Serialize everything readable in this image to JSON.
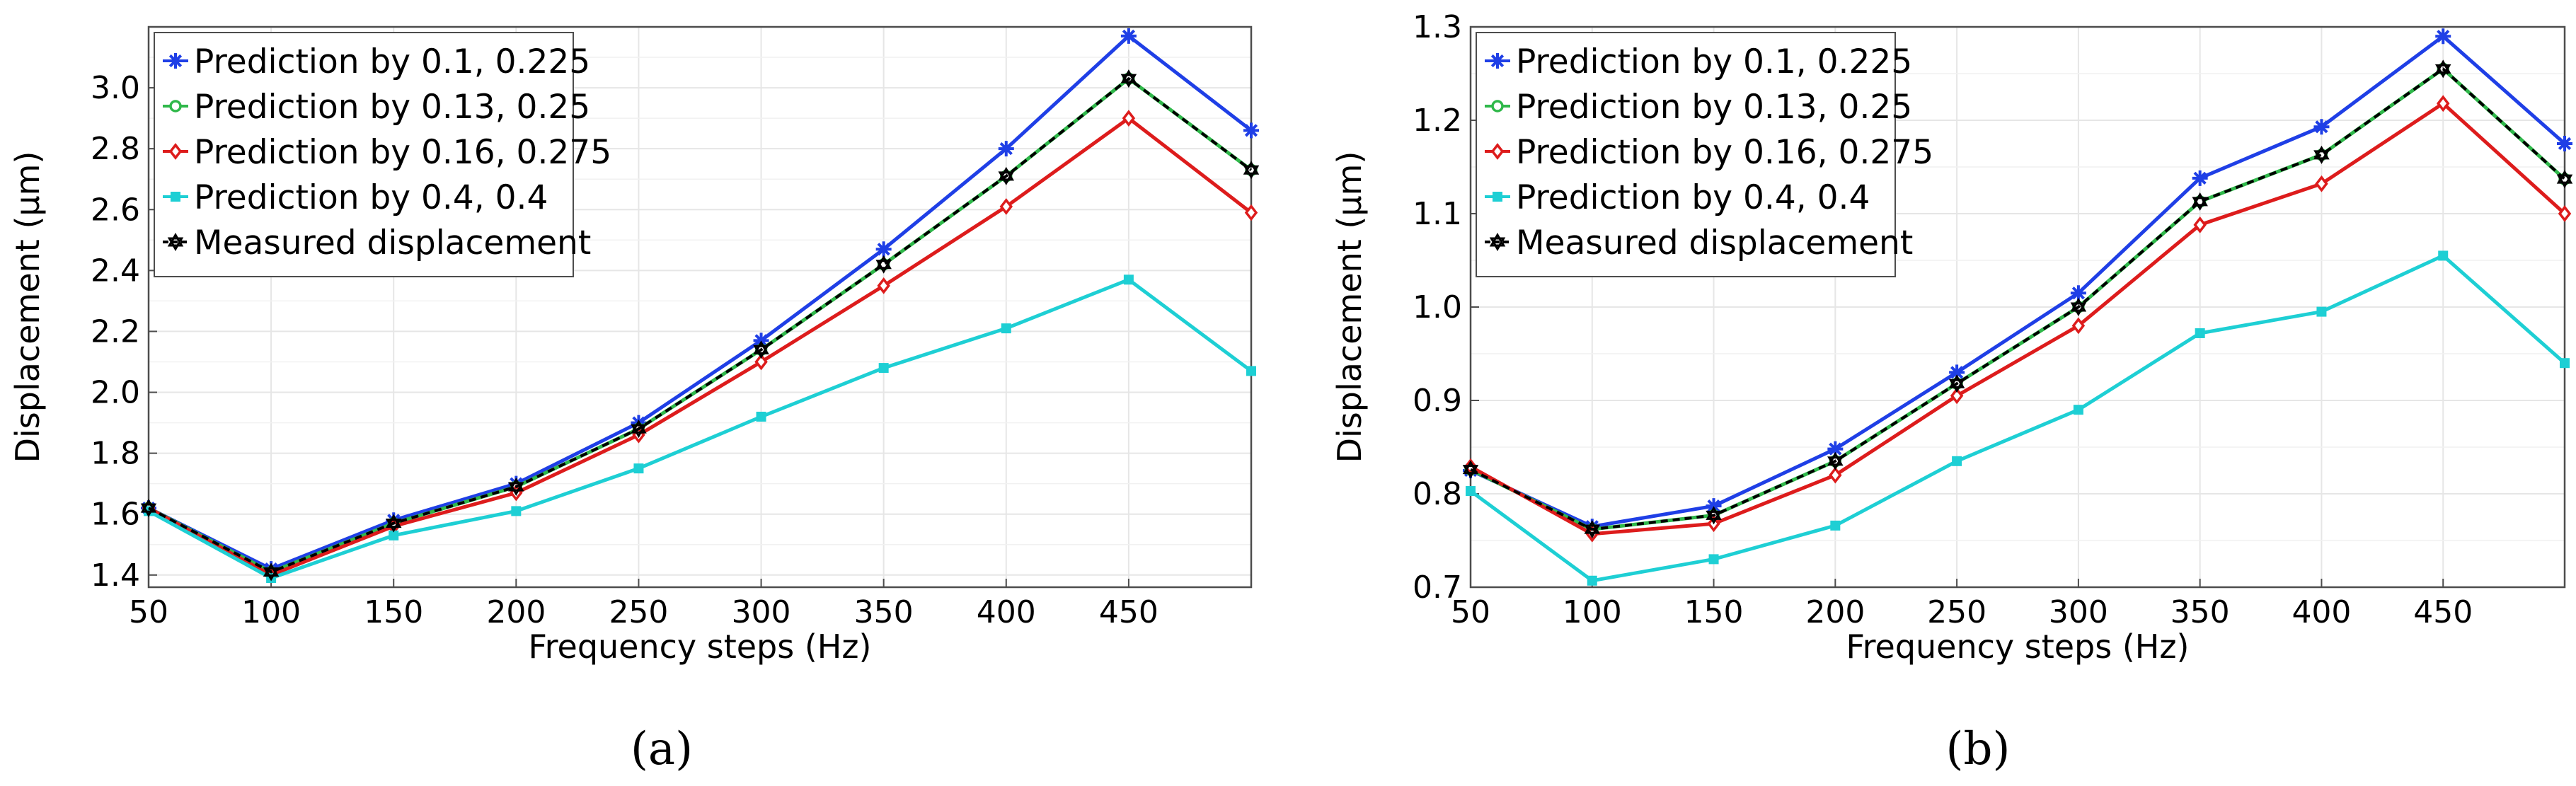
{
  "chart_data": [
    {
      "type": "line",
      "panel_label": "(a)",
      "xlabel": "Frequency steps (Hz)",
      "ylabel": "Displacement (μm)",
      "categories": [
        50,
        100,
        150,
        200,
        250,
        300,
        350,
        400,
        450,
        500
      ],
      "x_tick_labels": [
        "50",
        "100",
        "150",
        "200",
        "250",
        "300",
        "350",
        "400",
        "450"
      ],
      "xlim": [
        50,
        500
      ],
      "ylim": [
        1.36,
        3.2
      ],
      "y_ticks": [
        1.4,
        1.6,
        1.8,
        2.0,
        2.2,
        2.4,
        2.6,
        2.8,
        3.0
      ],
      "y_tick_labels": [
        "1.4",
        "1.6",
        "1.8",
        "2.0",
        "2.2",
        "2.4",
        "2.6",
        "2.8",
        "3.0"
      ],
      "grid": true,
      "legend_position": "top-left",
      "series": [
        {
          "name": "Prediction by 0.1, 0.225",
          "color": "#1f3fe6",
          "marker": "asterisk",
          "values": [
            1.62,
            1.42,
            1.58,
            1.7,
            1.9,
            2.17,
            2.47,
            2.8,
            3.17,
            2.86
          ]
        },
        {
          "name": "Prediction by 0.13, 0.25",
          "color": "#2fb84a",
          "marker": "circle",
          "values": [
            1.62,
            1.41,
            1.57,
            1.69,
            1.88,
            2.14,
            2.42,
            2.71,
            3.03,
            2.73
          ]
        },
        {
          "name": "Prediction by 0.16, 0.275",
          "color": "#dd1c1c",
          "marker": "diamond",
          "values": [
            1.62,
            1.4,
            1.56,
            1.67,
            1.86,
            2.1,
            2.35,
            2.61,
            2.9,
            2.59
          ]
        },
        {
          "name": "Prediction by 0.4, 0.4",
          "color": "#1ecfd4",
          "marker": "square",
          "values": [
            1.61,
            1.39,
            1.53,
            1.61,
            1.75,
            1.92,
            2.08,
            2.21,
            2.37,
            2.07
          ]
        },
        {
          "name": "Measured displacement",
          "color": "#000000",
          "marker": "hexagram",
          "dashed": true,
          "values": [
            1.62,
            1.41,
            1.57,
            1.69,
            1.88,
            2.14,
            2.42,
            2.71,
            3.03,
            2.73
          ]
        }
      ]
    },
    {
      "type": "line",
      "panel_label": "(b)",
      "xlabel": "Frequency steps (Hz)",
      "ylabel": "Displacement (μm)",
      "categories": [
        50,
        100,
        150,
        200,
        250,
        300,
        350,
        400,
        450,
        500
      ],
      "x_tick_labels": [
        "50",
        "100",
        "150",
        "200",
        "250",
        "300",
        "350",
        "400",
        "450"
      ],
      "xlim": [
        50,
        500
      ],
      "ylim": [
        0.7,
        1.3
      ],
      "y_ticks": [
        0.7,
        0.8,
        0.9,
        1.0,
        1.1,
        1.2,
        1.3
      ],
      "y_tick_labels": [
        "0.7",
        "0.8",
        "0.9",
        "1.0",
        "1.1",
        "1.2",
        "1.3"
      ],
      "grid": true,
      "legend_position": "top-left",
      "series": [
        {
          "name": "Prediction by 0.1, 0.225",
          "color": "#1f3fe6",
          "marker": "asterisk",
          "values": [
            0.825,
            0.765,
            0.787,
            0.848,
            0.93,
            1.015,
            1.138,
            1.193,
            1.29,
            1.175
          ]
        },
        {
          "name": "Prediction by 0.13, 0.25",
          "color": "#2fb84a",
          "marker": "circle",
          "values": [
            0.826,
            0.762,
            0.777,
            0.835,
            0.918,
            1.0,
            1.113,
            1.163,
            1.255,
            1.137
          ]
        },
        {
          "name": "Prediction by 0.16, 0.275",
          "color": "#dd1c1c",
          "marker": "diamond",
          "values": [
            0.829,
            0.757,
            0.768,
            0.82,
            0.905,
            0.98,
            1.088,
            1.132,
            1.218,
            1.1
          ]
        },
        {
          "name": "Prediction by 0.4, 0.4",
          "color": "#1ecfd4",
          "marker": "square",
          "values": [
            0.803,
            0.707,
            0.73,
            0.766,
            0.835,
            0.89,
            0.972,
            0.995,
            1.055,
            0.94
          ]
        },
        {
          "name": "Measured displacement",
          "color": "#000000",
          "marker": "hexagram",
          "dashed": true,
          "values": [
            0.826,
            0.762,
            0.777,
            0.835,
            0.918,
            1.0,
            1.113,
            1.163,
            1.255,
            1.137
          ]
        }
      ]
    }
  ]
}
